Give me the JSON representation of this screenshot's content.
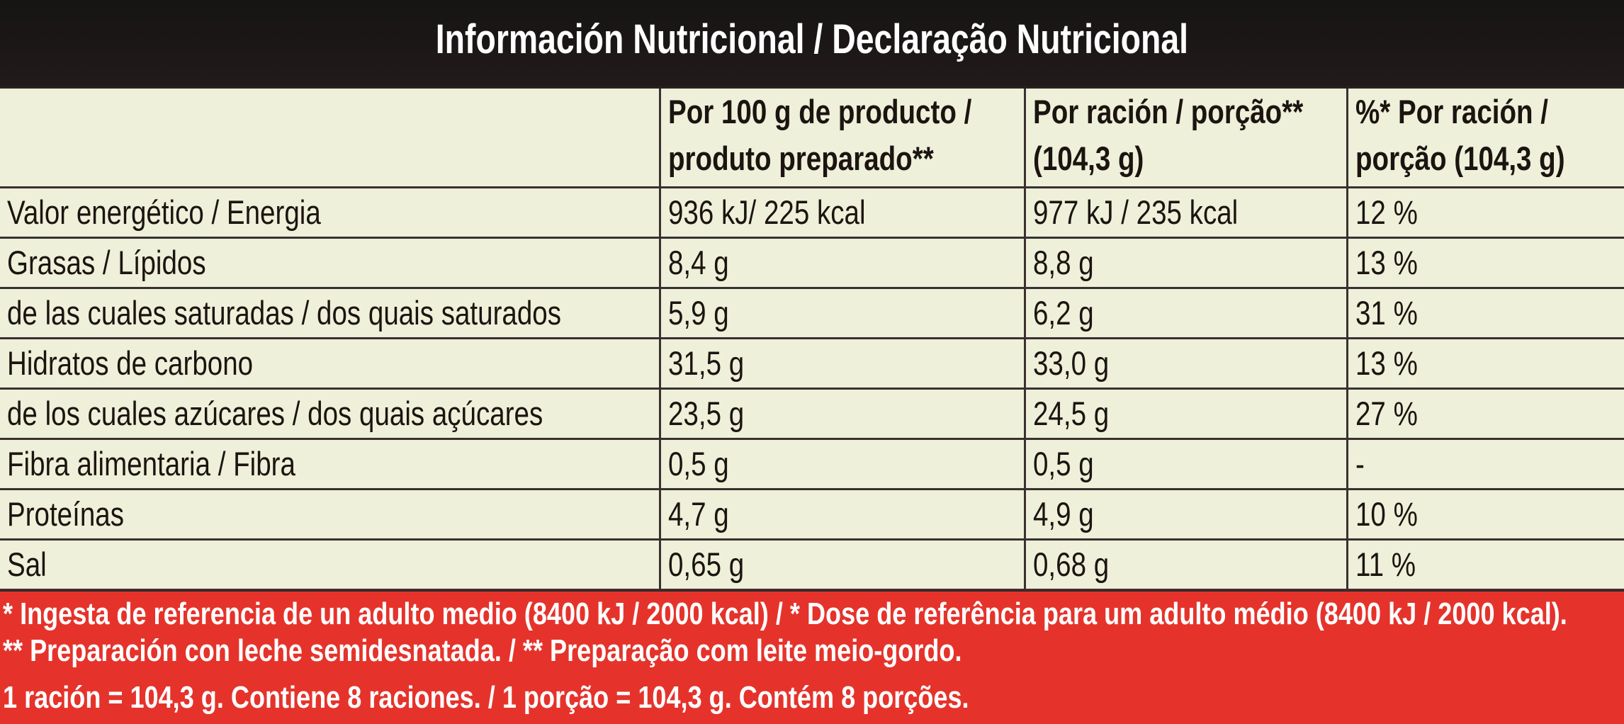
{
  "title": "Información Nutricional / Declaração Nutricional",
  "table": {
    "header": [
      "",
      "Por 100 g de producto / produto preparado**",
      "Por ración / porção** (104,3 g)",
      "%* Por ración / porção (104,3 g)"
    ],
    "rows": [
      [
        "Valor energético / Energia",
        "936 kJ/ 225 kcal",
        "977 kJ / 235 kcal",
        "12 %"
      ],
      [
        "Grasas / Lípidos",
        "8,4 g",
        "8,8 g",
        "13 %"
      ],
      [
        "de las cuales saturadas / dos quais saturados",
        "5,9 g",
        "6,2 g",
        "31 %"
      ],
      [
        "Hidratos de carbono",
        "31,5 g",
        "33,0 g",
        "13 %"
      ],
      [
        "de los cuales azúcares / dos quais açúcares",
        "23,5 g",
        "24,5 g",
        "27 %"
      ],
      [
        "Fibra alimentaria / Fibra",
        "0,5 g",
        "0,5 g",
        "-"
      ],
      [
        "Proteínas",
        "4,7 g",
        "4,9 g",
        "10 %"
      ],
      [
        "Sal",
        "0,65 g",
        "0,68 g",
        "11 %"
      ]
    ]
  },
  "footer": {
    "lines": [
      "* Ingesta de referencia de un adulto medio (8400 kJ / 2000 kcal)  / * Dose de referência para um adulto médio (8400 kJ / 2000 kcal).",
      "**  Preparación con leche semidesnatada. / ** Preparação com leite meio-gordo.",
      "1 ración = 104,3 g. Contiene 8 raciones.  / 1 porção = 104,3 g. Contém 8 porções."
    ]
  }
}
